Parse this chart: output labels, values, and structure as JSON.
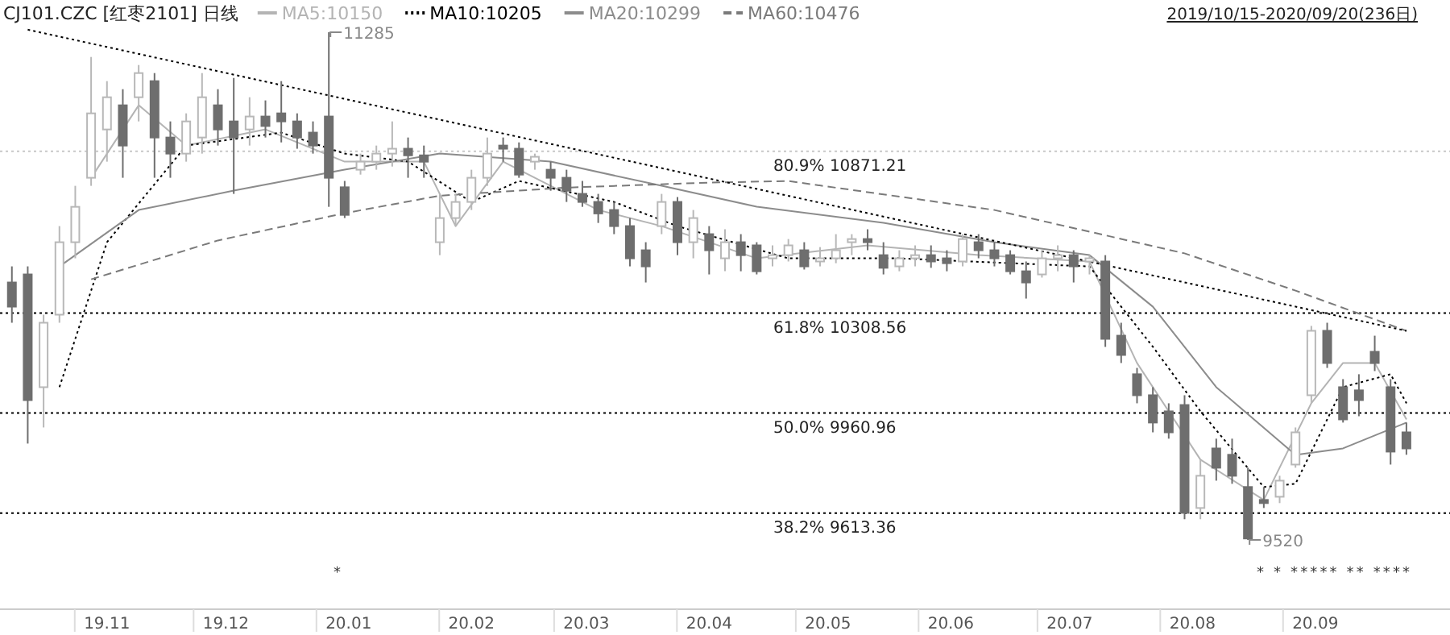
{
  "chart_data": {
    "type": "candlestick",
    "title": "CJ101.CZC [红枣2101] 日线",
    "subtitle": "2019/10/15-2020/09/20(236日)",
    "x": [
      "2019-10-08",
      "2019-10-12",
      "2019-10-16",
      "2019-10-20",
      "2019-10-24",
      "2019-10-28",
      "2019-11-01",
      "2019-11-05",
      "2019-11-09",
      "2019-11-13",
      "2019-11-17",
      "2019-11-21",
      "2019-11-25",
      "2019-11-29",
      "2019-12-03",
      "2019-12-07",
      "2019-12-11",
      "2019-12-15",
      "2019-12-19",
      "2019-12-23",
      "2019-12-27",
      "2019-12-31",
      "2020-01-04",
      "2020-01-08",
      "2020-01-12",
      "2020-01-16",
      "2020-01-20",
      "2020-01-24",
      "2020-01-28",
      "2020-02-01",
      "2020-02-05",
      "2020-02-09",
      "2020-02-13",
      "2020-02-17",
      "2020-02-21",
      "2020-02-25",
      "2020-02-29",
      "2020-03-04",
      "2020-03-08",
      "2020-03-12",
      "2020-03-16",
      "2020-03-20",
      "2020-03-24",
      "2020-03-28",
      "2020-04-01",
      "2020-04-05",
      "2020-04-09",
      "2020-04-13",
      "2020-04-17",
      "2020-04-21",
      "2020-04-25",
      "2020-04-29",
      "2020-05-03",
      "2020-05-07",
      "2020-05-11",
      "2020-05-15",
      "2020-05-19",
      "2020-05-23",
      "2020-05-27",
      "2020-05-31",
      "2020-06-04",
      "2020-06-08",
      "2020-06-12",
      "2020-06-16",
      "2020-06-20",
      "2020-06-24",
      "2020-06-28",
      "2020-07-02",
      "2020-07-06",
      "2020-07-10",
      "2020-07-14",
      "2020-07-18",
      "2020-07-22",
      "2020-07-26",
      "2020-07-30",
      "2020-08-03",
      "2020-08-07",
      "2020-08-11",
      "2020-08-15",
      "2020-08-19",
      "2020-08-23",
      "2020-08-27",
      "2020-08-31",
      "2020-09-04",
      "2020-09-08",
      "2020-09-12",
      "2020-09-16",
      "2020-09-20",
      "2020-09-24"
    ],
    "ohlc": [
      [
        10415,
        10471,
        10275,
        10331
      ],
      [
        10443,
        10471,
        9855,
        10006
      ],
      [
        10051,
        10303,
        9911,
        10275
      ],
      [
        10303,
        10611,
        10275,
        10555
      ],
      [
        10555,
        10751,
        10499,
        10678
      ],
      [
        10779,
        11199,
        10751,
        11003
      ],
      [
        10947,
        11115,
        10835,
        11059
      ],
      [
        11031,
        11087,
        10779,
        10891
      ],
      [
        11059,
        11171,
        10975,
        11143
      ],
      [
        11115,
        11143,
        10779,
        10919
      ],
      [
        10919,
        10975,
        10779,
        10863
      ],
      [
        10863,
        11003,
        10835,
        10975
      ],
      [
        10919,
        11143,
        10863,
        11059
      ],
      [
        11031,
        11087,
        10891,
        10947
      ],
      [
        10975,
        11126,
        10723,
        10919
      ],
      [
        10947,
        11059,
        10891,
        10992
      ],
      [
        10992,
        11048,
        10919,
        10959
      ],
      [
        11003,
        11115,
        10902,
        10975
      ],
      [
        10975,
        11003,
        10880,
        10919
      ],
      [
        10936,
        10975,
        10863,
        10891
      ],
      [
        10992,
        11285,
        10678,
        10779
      ],
      [
        10746,
        10768,
        10639,
        10650
      ],
      [
        10807,
        10863,
        10790,
        10835
      ],
      [
        10835,
        10891,
        10807,
        10863
      ],
      [
        10863,
        10975,
        10818,
        10880
      ],
      [
        10880,
        10919,
        10779,
        10857
      ],
      [
        10857,
        10891,
        10779,
        10835
      ],
      [
        10555,
        10723,
        10510,
        10639
      ],
      [
        10639,
        10723,
        10611,
        10695
      ],
      [
        10695,
        10807,
        10667,
        10779
      ],
      [
        10779,
        10919,
        10751,
        10863
      ],
      [
        10891,
        10919,
        10835,
        10880
      ],
      [
        10880,
        10902,
        10779,
        10790
      ],
      [
        10835,
        10863,
        10807,
        10852
      ],
      [
        10807,
        10835,
        10734,
        10779
      ],
      [
        10779,
        10807,
        10695,
        10734
      ],
      [
        10723,
        10768,
        10678,
        10695
      ],
      [
        10695,
        10723,
        10622,
        10655
      ],
      [
        10667,
        10695,
        10583,
        10611
      ],
      [
        10611,
        10639,
        10471,
        10499
      ],
      [
        10527,
        10555,
        10415,
        10471
      ],
      [
        10611,
        10723,
        10583,
        10695
      ],
      [
        10695,
        10712,
        10510,
        10555
      ],
      [
        10555,
        10667,
        10499,
        10639
      ],
      [
        10583,
        10611,
        10443,
        10527
      ],
      [
        10499,
        10600,
        10454,
        10555
      ],
      [
        10555,
        10583,
        10454,
        10510
      ],
      [
        10544,
        10555,
        10443,
        10454
      ],
      [
        10499,
        10544,
        10471,
        10510
      ],
      [
        10510,
        10566,
        10488,
        10544
      ],
      [
        10527,
        10555,
        10460,
        10471
      ],
      [
        10488,
        10538,
        10471,
        10499
      ],
      [
        10499,
        10583,
        10482,
        10527
      ],
      [
        10555,
        10583,
        10510,
        10566
      ],
      [
        10566,
        10600,
        10527,
        10555
      ],
      [
        10510,
        10555,
        10443,
        10466
      ],
      [
        10471,
        10527,
        10454,
        10499
      ],
      [
        10499,
        10544,
        10471,
        10510
      ],
      [
        10510,
        10544,
        10466,
        10488
      ],
      [
        10499,
        10527,
        10454,
        10482
      ],
      [
        10488,
        10583,
        10471,
        10566
      ],
      [
        10555,
        10583,
        10499,
        10527
      ],
      [
        10527,
        10555,
        10471,
        10499
      ],
      [
        10510,
        10527,
        10443,
        10454
      ],
      [
        10454,
        10488,
        10359,
        10415
      ],
      [
        10443,
        10527,
        10432,
        10499
      ],
      [
        10499,
        10544,
        10454,
        10510
      ],
      [
        10510,
        10527,
        10415,
        10471
      ],
      [
        10488,
        10510,
        10443,
        10499
      ],
      [
        10488,
        10510,
        10191,
        10219
      ],
      [
        10230,
        10275,
        10135,
        10163
      ],
      [
        10096,
        10118,
        9995,
        10023
      ],
      [
        10023,
        10051,
        9894,
        9928
      ],
      [
        9967,
        9995,
        9872,
        9894
      ],
      [
        9989,
        10023,
        9592,
        9614
      ],
      [
        9631,
        9799,
        9592,
        9743
      ],
      [
        9838,
        9872,
        9726,
        9771
      ],
      [
        9816,
        9872,
        9715,
        9743
      ],
      [
        9704,
        9771,
        9520,
        9525
      ],
      [
        9659,
        9704,
        9631,
        9648
      ],
      [
        9670,
        9743,
        9648,
        9726
      ],
      [
        9782,
        9911,
        9771,
        9894
      ],
      [
        10023,
        10264,
        9995,
        10247
      ],
      [
        10247,
        10275,
        10118,
        10135
      ],
      [
        10051,
        10079,
        9928,
        9939
      ],
      [
        10040,
        10096,
        9950,
        10006
      ],
      [
        10174,
        10230,
        10107,
        10135
      ],
      [
        10051,
        10079,
        9782,
        9827
      ],
      [
        9894,
        9928,
        9816,
        9838
      ]
    ],
    "xlim": [
      "2019-10-05",
      "2020-10-05"
    ],
    "xticks": [
      {
        "value": "2019-11-01",
        "label": "19.11"
      },
      {
        "value": "2019-12-01",
        "label": "19.12"
      },
      {
        "value": "2020-01-01",
        "label": "20.01"
      },
      {
        "value": "2020-02-01",
        "label": "20.02"
      },
      {
        "value": "2020-03-01",
        "label": "20.03"
      },
      {
        "value": "2020-04-01",
        "label": "20.04"
      },
      {
        "value": "2020-05-01",
        "label": "20.05"
      },
      {
        "value": "2020-06-01",
        "label": "20.06"
      },
      {
        "value": "2020-07-01",
        "label": "20.07"
      },
      {
        "value": "2020-08-01",
        "label": "20.08"
      },
      {
        "value": "2020-09-01",
        "label": "20.09"
      }
    ],
    "series": [
      {
        "type": "line",
        "name": "MA5:10150",
        "color": "#b4b4b4",
        "line_style": "solid",
        "x": [
          "2019-10-28",
          "2019-11-09",
          "2019-11-21",
          "2019-12-11",
          "2019-12-31",
          "2020-01-20",
          "2020-01-28",
          "2020-02-09",
          "2020-03-04",
          "2020-03-20",
          "2020-04-13",
          "2020-05-11",
          "2020-06-08",
          "2020-07-06",
          "2020-07-18",
          "2020-08-03",
          "2020-08-19",
          "2020-08-31",
          "2020-09-08",
          "2020-09-16",
          "2020-09-24"
        ],
        "values": [
          10779,
          11031,
          10891,
          10947,
          10835,
          10835,
          10611,
          10835,
          10667,
          10611,
          10499,
          10544,
          10510,
          10488,
          10135,
          9799,
          9659,
          9995,
          10135,
          10135,
          9939
        ]
      },
      {
        "type": "line",
        "name": "MA10:10205",
        "color": "#000000",
        "line_style": "dotted",
        "x": [
          "2019-10-20",
          "2019-11-01",
          "2019-11-21",
          "2019-12-15",
          "2019-12-31",
          "2020-01-16",
          "2020-02-01",
          "2020-02-13",
          "2020-03-08",
          "2020-03-24",
          "2020-04-21",
          "2020-05-19",
          "2020-06-16",
          "2020-07-06",
          "2020-07-22",
          "2020-08-03",
          "2020-08-19",
          "2020-08-27",
          "2020-09-08",
          "2020-09-20",
          "2020-09-24"
        ],
        "values": [
          10051,
          10555,
          10891,
          10936,
          10863,
          10835,
          10695,
          10768,
          10695,
          10611,
          10499,
          10499,
          10482,
          10471,
          10191,
          9967,
          9704,
          9715,
          10051,
          10096,
          9995
        ]
      },
      {
        "type": "line",
        "name": "MA20:10299",
        "color": "#8c8c8c",
        "line_style": "solid",
        "x": [
          "2019-10-20",
          "2019-11-09",
          "2019-12-03",
          "2019-12-31",
          "2020-01-24",
          "2020-02-21",
          "2020-03-20",
          "2020-04-13",
          "2020-05-15",
          "2020-06-12",
          "2020-07-06",
          "2020-07-22",
          "2020-08-07",
          "2020-08-27",
          "2020-09-08",
          "2020-09-24"
        ],
        "values": [
          10471,
          10667,
          10734,
          10807,
          10863,
          10835,
          10751,
          10678,
          10622,
          10555,
          10510,
          10331,
          10051,
          9816,
          9838,
          9928
        ]
      },
      {
        "type": "line",
        "name": "MA60:10476",
        "color": "#7a7a7a",
        "line_style": "dashed",
        "x": [
          "2019-10-28",
          "2019-11-29",
          "2019-12-31",
          "2020-01-24",
          "2020-02-25",
          "2020-04-01",
          "2020-04-21",
          "2020-06-12",
          "2020-07-30",
          "2020-08-27",
          "2020-09-24"
        ],
        "values": [
          10426,
          10561,
          10656,
          10717,
          10745,
          10762,
          10768,
          10667,
          10516,
          10387,
          10247
        ]
      },
      {
        "type": "line",
        "color": "#000000",
        "line_style": "dotted",
        "x": [
          "2019-10-12",
          "2020-09-24"
        ],
        "values": [
          11294,
          10247
        ]
      }
    ],
    "ref_lines": [
      {
        "axis": "y",
        "value": 10871.21,
        "label": "80.9%  10871.21",
        "color": "#c8c8c8",
        "line_style": "dotted"
      },
      {
        "axis": "y",
        "value": 10308.56,
        "label": "61.8%  10308.56",
        "color": "#000000",
        "line_style": "dotted"
      },
      {
        "axis": "y",
        "value": 9960.96,
        "label": "50.0%  9960.96",
        "color": "#000000",
        "line_style": "dotted"
      },
      {
        "axis": "y",
        "value": 9613.36,
        "label": "38.2%  9613.36",
        "color": "#000000",
        "line_style": "dotted"
      }
    ],
    "annotations": [
      {
        "text": "11285",
        "x": "2019-12-27",
        "y": 11285
      },
      {
        "text": "9520",
        "x": "2020-08-15",
        "y": 9520
      },
      "*",
      "* * ***** **        ****"
    ],
    "legend": "top left",
    "grid": false,
    "tick_labels": "x"
  }
}
